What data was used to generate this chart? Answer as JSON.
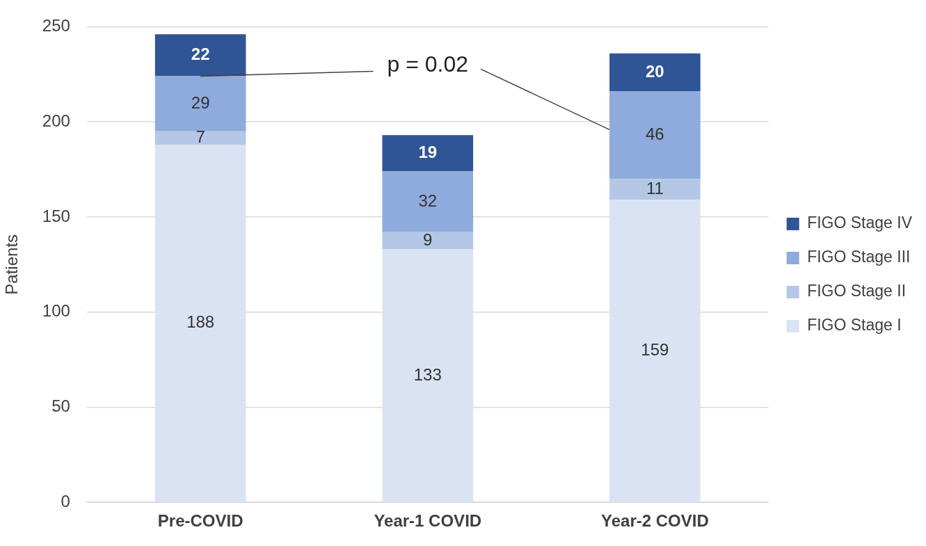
{
  "chart_data": {
    "type": "bar",
    "stacked": true,
    "ylabel": "Patients",
    "categories": [
      "Pre-COVID",
      "Year-1 COVID",
      "Year-2 COVID"
    ],
    "series": [
      {
        "name": "FIGO Stage I",
        "color": "#dae3f3",
        "values": [
          188,
          133,
          159
        ]
      },
      {
        "name": "FIGO Stage II",
        "color": "#b4c7e7",
        "values": [
          7,
          9,
          11
        ]
      },
      {
        "name": "FIGO Stage III",
        "color": "#8faadc",
        "values": [
          29,
          32,
          46
        ]
      },
      {
        "name": "FIGO Stage IV",
        "color": "#2f5597",
        "values": [
          22,
          19,
          20
        ]
      }
    ],
    "ylim": [
      0,
      250
    ],
    "yticks": [
      0,
      50,
      100,
      150,
      200,
      250
    ],
    "grid": "y",
    "legend": "right",
    "data_labels": true,
    "annotations": [
      {
        "text": "p = 0.02",
        "x": "Pre-COVID",
        "y": 224
      }
    ]
  }
}
